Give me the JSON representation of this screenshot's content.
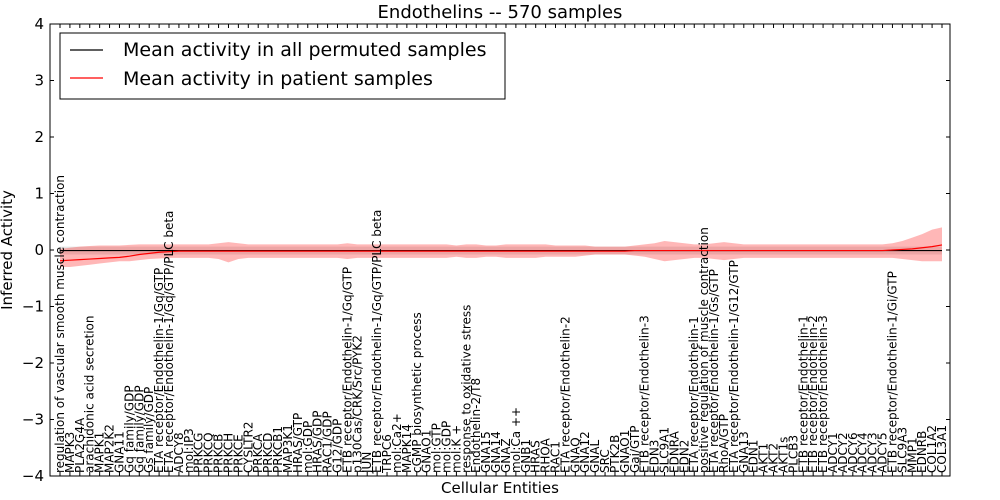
{
  "chart_data": {
    "type": "line",
    "title": "Endothelins -- 570 samples",
    "xlabel": "Cellular Entities",
    "ylabel": "Inferred Activity",
    "ylim": [
      -4,
      4
    ],
    "yticks": [
      "−4",
      "−3",
      "−2",
      "−1",
      "0",
      "1",
      "2",
      "3",
      "4"
    ],
    "legend": {
      "position": "top-left",
      "entries": [
        {
          "label": "Mean activity in all permuted samples",
          "color": "#000000"
        },
        {
          "label": "Mean activity in patient samples",
          "color": "#ff0000"
        }
      ]
    },
    "categories": [
      "regulation of vascular smooth muscle contraction",
      "MAPK3",
      "PLA2G4A",
      "arachidonic acid secretion",
      "MAPK1",
      "MAP2K2",
      "GNA11",
      "Gq family/GDP",
      "Gq family/GDP",
      "Gs family/GDP",
      "ETA receptor/Endothelin-1/Gq/GTP",
      "ETA receptor/Endothelin-1/Gq/GTP/PLC beta",
      "ADCY8",
      "mol:IP3",
      "PRKCG",
      "PRKCQ",
      "PRKCB",
      "PRKCH",
      "PRKCE",
      "CYSLTR2",
      "PRKCA",
      "PRKCD",
      "PRKCB1",
      "MAP3K1",
      "HRAS/GTP",
      "mol:GDP",
      "HRAS/GDP",
      "RAC1/GDP",
      "G12/GDP",
      "ETB receptor/Endothelin-1/Gq/GTP",
      "p130Cas/CRK/Src/PYK2",
      "JUN",
      "ETB receptor/Endothelin-1/Gq/GTP/PLC beta",
      "TRPC6",
      "mol:Ca2+",
      "MAPK14",
      "cGMP biosynthetic process",
      "GNAO1",
      "mol:GTP",
      "mol:GDP",
      "mol:K +",
      "response to oxidative stress",
      "Endothelin-2/T8",
      "GNA15",
      "GNA14",
      "GNAZ",
      "mol:Ca ++",
      "GNB1",
      "HRAS",
      "RHOA",
      "RAC1",
      "ETA receptor/Endothelin-2",
      "GNAQ",
      "GNA12",
      "GNAL",
      "SRC",
      "PTK2B",
      "GNAO1",
      "Gai/GTP",
      "ETB receptor/Endothelin-3",
      "EDN3",
      "SLC9A1",
      "EDNRA",
      "EDN2",
      "ETA receptor/Endothelin-1",
      "positive regulation of muscle contraction",
      "ETA receptor/Endothelin-1/Gs/GTP",
      "RhoA/GTP",
      "ETA receptor/Endothelin-1/G12/GTP",
      "GNA13",
      "EDN1",
      "AKT1",
      "AKT2",
      "AKT1s",
      "PLCB3",
      "ETB receptor/Endothelin-1",
      "ETB receptor/Endothelin-2",
      "ETB receptor/Endothelin-3",
      "ADCY1",
      "ADCY2",
      "ADCY6",
      "ADCY4",
      "ADCY3",
      "ADCY5",
      "ETB receptor/Endothelin-1/Gi/GTP",
      "SLC9A3",
      "MMP1",
      "EDNRB",
      "COL1A2",
      "COL3A1"
    ],
    "patient_mean": [
      -0.19,
      -0.18,
      -0.17,
      -0.16,
      -0.15,
      -0.14,
      -0.13,
      -0.11,
      -0.08,
      -0.06,
      -0.04,
      -0.03,
      -0.02,
      -0.02,
      -0.02,
      -0.02,
      -0.02,
      -0.02,
      -0.02,
      -0.02,
      -0.02,
      -0.02,
      -0.02,
      -0.02,
      -0.02,
      -0.02,
      -0.02,
      -0.02,
      -0.02,
      -0.02,
      -0.02,
      -0.02,
      -0.02,
      -0.02,
      -0.02,
      -0.02,
      -0.02,
      -0.02,
      -0.02,
      -0.02,
      -0.02,
      -0.02,
      -0.02,
      -0.02,
      -0.02,
      -0.02,
      -0.02,
      -0.02,
      -0.02,
      -0.02,
      -0.02,
      -0.02,
      -0.02,
      -0.02,
      -0.02,
      -0.02,
      -0.02,
      -0.02,
      -0.01,
      -0.01,
      -0.01,
      -0.01,
      -0.01,
      -0.01,
      -0.01,
      -0.01,
      -0.01,
      -0.01,
      -0.01,
      -0.01,
      -0.01,
      -0.01,
      -0.01,
      -0.01,
      -0.01,
      -0.01,
      -0.01,
      -0.01,
      -0.01,
      -0.01,
      -0.01,
      -0.01,
      -0.01,
      -0.01,
      0.0,
      0.01,
      0.02,
      0.04,
      0.06,
      0.09
    ],
    "patient_upper": [
      0.02,
      0.04,
      0.06,
      0.07,
      0.08,
      0.08,
      0.08,
      0.09,
      0.1,
      0.1,
      0.1,
      0.1,
      0.1,
      0.1,
      0.1,
      0.1,
      0.12,
      0.14,
      0.12,
      0.1,
      0.1,
      0.1,
      0.1,
      0.1,
      0.1,
      0.1,
      0.1,
      0.1,
      0.1,
      0.12,
      0.1,
      0.1,
      0.1,
      0.1,
      0.1,
      0.1,
      0.1,
      0.1,
      0.1,
      0.1,
      0.08,
      0.1,
      0.1,
      0.08,
      0.08,
      0.1,
      0.1,
      0.1,
      0.1,
      0.1,
      0.08,
      0.08,
      0.08,
      0.08,
      0.06,
      0.06,
      0.06,
      0.06,
      0.08,
      0.1,
      0.12,
      0.16,
      0.14,
      0.12,
      0.1,
      0.1,
      0.12,
      0.14,
      0.12,
      0.1,
      0.1,
      0.1,
      0.1,
      0.1,
      0.1,
      0.1,
      0.1,
      0.1,
      0.1,
      0.1,
      0.1,
      0.1,
      0.1,
      0.1,
      0.12,
      0.16,
      0.22,
      0.28,
      0.36,
      0.4
    ],
    "patient_lower": [
      -0.3,
      -0.3,
      -0.28,
      -0.26,
      -0.24,
      -0.22,
      -0.2,
      -0.2,
      -0.18,
      -0.16,
      -0.15,
      -0.14,
      -0.14,
      -0.14,
      -0.14,
      -0.14,
      -0.16,
      -0.22,
      -0.16,
      -0.14,
      -0.14,
      -0.14,
      -0.14,
      -0.14,
      -0.14,
      -0.14,
      -0.14,
      -0.14,
      -0.14,
      -0.16,
      -0.14,
      -0.14,
      -0.14,
      -0.14,
      -0.14,
      -0.14,
      -0.14,
      -0.14,
      -0.14,
      -0.14,
      -0.12,
      -0.14,
      -0.14,
      -0.12,
      -0.12,
      -0.14,
      -0.14,
      -0.14,
      -0.14,
      -0.12,
      -0.12,
      -0.12,
      -0.12,
      -0.1,
      -0.08,
      -0.08,
      -0.08,
      -0.08,
      -0.1,
      -0.12,
      -0.16,
      -0.2,
      -0.18,
      -0.16,
      -0.14,
      -0.14,
      -0.16,
      -0.18,
      -0.16,
      -0.14,
      -0.14,
      -0.14,
      -0.14,
      -0.14,
      -0.14,
      -0.14,
      -0.14,
      -0.14,
      -0.14,
      -0.14,
      -0.14,
      -0.14,
      -0.14,
      -0.14,
      -0.14,
      -0.16,
      -0.18,
      -0.2,
      -0.2,
      -0.2
    ],
    "permuted_mean": [
      -0.01,
      -0.01,
      -0.01,
      -0.01,
      -0.01,
      -0.01,
      -0.01,
      -0.01,
      -0.01,
      -0.01,
      -0.01,
      -0.01,
      -0.01,
      -0.01,
      -0.01,
      -0.01,
      -0.01,
      -0.01,
      -0.01,
      -0.01,
      -0.01,
      -0.01,
      -0.01,
      -0.01,
      -0.01,
      -0.01,
      -0.01,
      -0.01,
      -0.01,
      -0.01,
      -0.01,
      -0.01,
      -0.01,
      -0.01,
      -0.01,
      -0.01,
      -0.01,
      -0.01,
      -0.01,
      -0.01,
      -0.01,
      -0.01,
      -0.01,
      -0.01,
      -0.01,
      -0.01,
      -0.01,
      -0.01,
      -0.01,
      -0.01,
      -0.01,
      -0.01,
      -0.01,
      -0.01,
      -0.01,
      -0.01,
      -0.01,
      -0.01,
      -0.01,
      -0.01,
      -0.01,
      -0.01,
      -0.01,
      -0.01,
      -0.01,
      -0.01,
      -0.01,
      -0.01,
      -0.01,
      -0.01,
      -0.01,
      -0.01,
      -0.01,
      -0.01,
      -0.01,
      -0.01,
      -0.01,
      -0.01,
      -0.01,
      -0.01,
      -0.01,
      -0.01,
      -0.01,
      -0.01,
      -0.01,
      -0.01,
      -0.01,
      -0.01,
      -0.01,
      -0.01
    ],
    "permuted_band": 0.07
  }
}
